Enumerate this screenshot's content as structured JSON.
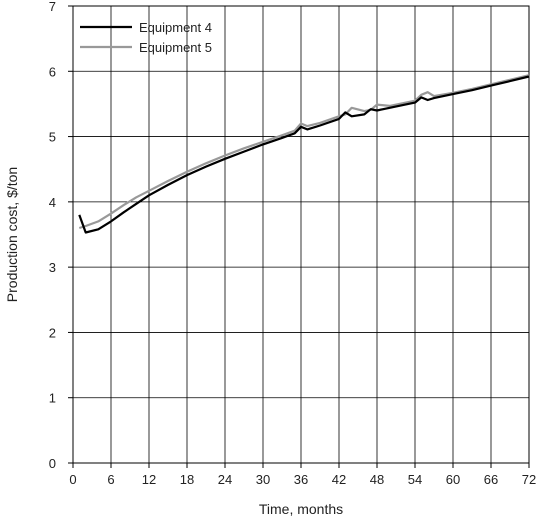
{
  "chart_data": {
    "type": "line",
    "title": "",
    "xlabel": "Time, months",
    "ylabel": "Production cost, $/ton",
    "xlim": [
      0,
      72
    ],
    "ylim": [
      0,
      7
    ],
    "x_ticks": [
      0,
      6,
      12,
      18,
      24,
      30,
      36,
      42,
      48,
      54,
      60,
      66,
      72
    ],
    "y_ticks": [
      0,
      1,
      2,
      3,
      4,
      5,
      6,
      7
    ],
    "grid": true,
    "legend_position": "top-left",
    "series": [
      {
        "name": "Equipment 4",
        "color": "#000000",
        "x": [
          1,
          2,
          4,
          6,
          8,
          10,
          12,
          15,
          18,
          21,
          24,
          27,
          30,
          33,
          35,
          36,
          37,
          39,
          42,
          43,
          44,
          46,
          47,
          48,
          50,
          52,
          54,
          55,
          56,
          57,
          60,
          63,
          66,
          69,
          72
        ],
        "y": [
          3.8,
          3.53,
          3.58,
          3.7,
          3.84,
          3.97,
          4.1,
          4.26,
          4.41,
          4.54,
          4.66,
          4.77,
          4.88,
          4.98,
          5.05,
          5.15,
          5.11,
          5.17,
          5.27,
          5.37,
          5.31,
          5.34,
          5.42,
          5.4,
          5.44,
          5.48,
          5.52,
          5.6,
          5.56,
          5.59,
          5.65,
          5.71,
          5.78,
          5.85,
          5.92
        ]
      },
      {
        "name": "Equipment 5",
        "color": "#999999",
        "x": [
          1,
          2,
          4,
          6,
          8,
          10,
          12,
          15,
          18,
          21,
          24,
          27,
          30,
          33,
          35,
          36,
          37,
          39,
          42,
          43,
          44,
          46,
          47,
          48,
          50,
          52,
          54,
          55,
          56,
          57,
          60,
          63,
          66,
          69,
          72
        ],
        "y": [
          3.6,
          3.63,
          3.7,
          3.82,
          3.95,
          4.07,
          4.17,
          4.32,
          4.46,
          4.59,
          4.71,
          4.82,
          4.92,
          5.02,
          5.09,
          5.2,
          5.16,
          5.21,
          5.31,
          5.34,
          5.44,
          5.39,
          5.41,
          5.49,
          5.47,
          5.51,
          5.55,
          5.64,
          5.68,
          5.62,
          5.67,
          5.73,
          5.8,
          5.87,
          5.94
        ]
      }
    ]
  }
}
